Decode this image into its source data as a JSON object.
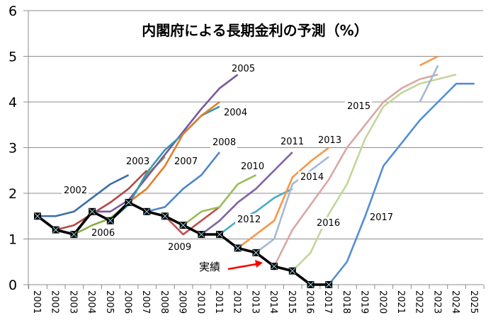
{
  "chart_data": {
    "type": "line",
    "title": "内閣府による長期金利の予測（%）",
    "xlabel": "",
    "ylabel": "",
    "ylim": [
      0,
      6
    ],
    "yticks": [
      "0",
      "1",
      "2",
      "3",
      "4",
      "5",
      "6"
    ],
    "grid": true,
    "legend": "none (series labeled inline)",
    "categories": [
      "2001",
      "2002",
      "2003",
      "2004",
      "2005",
      "2006",
      "2007",
      "2008",
      "2009",
      "2010",
      "2011",
      "2012",
      "2013",
      "2014",
      "2015",
      "2016",
      "2017",
      "2018",
      "2019",
      "2020",
      "2021",
      "2022",
      "2023",
      "2024",
      "2025"
    ],
    "actual": {
      "name": "実績",
      "color": "#000000",
      "points": [
        {
          "x": "2001",
          "y": 1.5
        },
        {
          "x": "2002",
          "y": 1.2
        },
        {
          "x": "2003",
          "y": 1.1
        },
        {
          "x": "2004",
          "y": 1.6
        },
        {
          "x": "2005",
          "y": 1.4
        },
        {
          "x": "2006",
          "y": 1.8
        },
        {
          "x": "2007",
          "y": 1.6
        },
        {
          "x": "2008",
          "y": 1.5
        },
        {
          "x": "2009",
          "y": 1.3
        },
        {
          "x": "2010",
          "y": 1.1
        },
        {
          "x": "2011",
          "y": 1.1
        },
        {
          "x": "2012",
          "y": 0.8
        },
        {
          "x": "2013",
          "y": 0.7
        },
        {
          "x": "2014",
          "y": 0.4
        },
        {
          "x": "2015",
          "y": 0.3
        },
        {
          "x": "2016",
          "y": 0.0
        },
        {
          "x": "2017",
          "y": 0.0
        }
      ]
    },
    "series": [
      {
        "name": "2002",
        "color": "#3C6EA5",
        "points": [
          {
            "x": "2001",
            "y": 1.5
          },
          {
            "x": "2002",
            "y": 1.5
          },
          {
            "x": "2003",
            "y": 1.6
          },
          {
            "x": "2004",
            "y": 1.9
          },
          {
            "x": "2005",
            "y": 2.2
          },
          {
            "x": "2006",
            "y": 2.4
          }
        ]
      },
      {
        "name": "2003",
        "color": "#B04A47",
        "points": [
          {
            "x": "2002",
            "y": 1.2
          },
          {
            "x": "2003",
            "y": 1.3
          },
          {
            "x": "2004",
            "y": 1.55
          },
          {
            "x": "2005",
            "y": 1.8
          },
          {
            "x": "2006",
            "y": 2.1
          },
          {
            "x": "2007",
            "y": 2.5
          }
        ]
      },
      {
        "name": "2006",
        "color": "#8EAA4A",
        "points": [
          {
            "x": "2003",
            "y": 1.1
          },
          {
            "x": "2004",
            "y": 1.3
          },
          {
            "x": "2005",
            "y": 1.45
          },
          {
            "x": "2006",
            "y": 1.8
          },
          {
            "x": "2007",
            "y": 2.4
          },
          {
            "x": "2008",
            "y": 2.8
          }
        ]
      },
      {
        "name": "2005",
        "color": "#7559A0",
        "points": [
          {
            "x": "2004",
            "y": 1.6
          },
          {
            "x": "2005",
            "y": 1.6
          },
          {
            "x": "2006",
            "y": 1.85
          },
          {
            "x": "2007",
            "y": 2.35
          },
          {
            "x": "2008",
            "y": 2.85
          },
          {
            "x": "2009",
            "y": 3.35
          },
          {
            "x": "2010",
            "y": 3.85
          },
          {
            "x": "2011",
            "y": 4.3
          },
          {
            "x": "2012",
            "y": 4.6
          }
        ]
      },
      {
        "name": "2004",
        "color": "#3A97AE",
        "points": [
          {
            "x": "2005",
            "y": 1.4
          },
          {
            "x": "2006",
            "y": 1.75
          },
          {
            "x": "2007",
            "y": 2.45
          },
          {
            "x": "2008",
            "y": 2.95
          },
          {
            "x": "2009",
            "y": 3.3
          },
          {
            "x": "2010",
            "y": 3.7
          },
          {
            "x": "2011",
            "y": 3.9
          }
        ]
      },
      {
        "name": "2007",
        "color": "#E07F2E",
        "points": [
          {
            "x": "2006",
            "y": 1.8
          },
          {
            "x": "2007",
            "y": 2.1
          },
          {
            "x": "2008",
            "y": 2.6
          },
          {
            "x": "2009",
            "y": 3.3
          },
          {
            "x": "2010",
            "y": 3.7
          },
          {
            "x": "2011",
            "y": 4.0
          }
        ]
      },
      {
        "name": "2008",
        "color": "#4F86C6",
        "points": [
          {
            "x": "2007",
            "y": 1.6
          },
          {
            "x": "2008",
            "y": 1.7
          },
          {
            "x": "2009",
            "y": 2.1
          },
          {
            "x": "2010",
            "y": 2.4
          },
          {
            "x": "2011",
            "y": 2.9
          }
        ]
      },
      {
        "name": "2009",
        "color": "#C0504D",
        "points": [
          {
            "x": "2008",
            "y": 1.5
          },
          {
            "x": "2009",
            "y": 1.1
          },
          {
            "x": "2010",
            "y": 1.4
          },
          {
            "x": "2011",
            "y": 1.7
          }
        ]
      },
      {
        "name": "2010",
        "color": "#9BBB59",
        "points": [
          {
            "x": "2009",
            "y": 1.3
          },
          {
            "x": "2010",
            "y": 1.6
          },
          {
            "x": "2011",
            "y": 1.7
          },
          {
            "x": "2012",
            "y": 2.2
          },
          {
            "x": "2013",
            "y": 2.4
          }
        ]
      },
      {
        "name": "2011",
        "color": "#8064A2",
        "points": [
          {
            "x": "2010",
            "y": 1.1
          },
          {
            "x": "2011",
            "y": 1.4
          },
          {
            "x": "2012",
            "y": 1.8
          },
          {
            "x": "2013",
            "y": 2.1
          },
          {
            "x": "2014",
            "y": 2.5
          },
          {
            "x": "2015",
            "y": 2.9
          }
        ]
      },
      {
        "name": "2012",
        "color": "#4BACC6",
        "points": [
          {
            "x": "2011",
            "y": 1.1
          },
          {
            "x": "2012",
            "y": 1.4
          },
          {
            "x": "2013",
            "y": 1.6
          },
          {
            "x": "2014",
            "y": 1.9
          },
          {
            "x": "2015",
            "y": 2.1
          }
        ]
      },
      {
        "name": "2013",
        "color": "#F79646",
        "points": [
          {
            "x": "2012",
            "y": 0.8
          },
          {
            "x": "2013",
            "y": 1.1
          },
          {
            "x": "2014",
            "y": 1.4
          },
          {
            "x": "2015",
            "y": 2.35
          },
          {
            "x": "2016",
            "y": 2.7
          },
          {
            "x": "2017",
            "y": 3.0
          }
        ]
      },
      {
        "name": "2014",
        "color": "#A5B8D8",
        "points": [
          {
            "x": "2013",
            "y": 0.7
          },
          {
            "x": "2014",
            "y": 1.0
          },
          {
            "x": "2015",
            "y": 2.2
          },
          {
            "x": "2016",
            "y": 2.5
          },
          {
            "x": "2017",
            "y": 2.8
          }
        ]
      },
      {
        "name": "2015",
        "color": "#D8A7A4",
        "points": [
          {
            "x": "2014",
            "y": 0.4
          },
          {
            "x": "2015",
            "y": 1.2
          },
          {
            "x": "2016",
            "y": 1.75
          },
          {
            "x": "2017",
            "y": 2.3
          },
          {
            "x": "2018",
            "y": 3.0
          },
          {
            "x": "2019",
            "y": 3.5
          },
          {
            "x": "2020",
            "y": 4.0
          },
          {
            "x": "2021",
            "y": 4.3
          },
          {
            "x": "2022",
            "y": 4.5
          },
          {
            "x": "2023",
            "y": 4.6
          }
        ]
      },
      {
        "name": "2016",
        "color": "#C3D69B",
        "points": [
          {
            "x": "2015",
            "y": 0.3
          },
          {
            "x": "2016",
            "y": 0.7
          },
          {
            "x": "2017",
            "y": 1.55
          },
          {
            "x": "2018",
            "y": 2.2
          },
          {
            "x": "2019",
            "y": 3.2
          },
          {
            "x": "2020",
            "y": 3.9
          },
          {
            "x": "2021",
            "y": 4.2
          },
          {
            "x": "2022",
            "y": 4.4
          },
          {
            "x": "2023",
            "y": 4.5
          },
          {
            "x": "2024",
            "y": 4.6
          }
        ]
      },
      {
        "name": "2017",
        "color": "#558ED5",
        "points": [
          {
            "x": "2017",
            "y": 0.0
          },
          {
            "x": "2018",
            "y": 0.5
          },
          {
            "x": "2019",
            "y": 1.5
          },
          {
            "x": "2020",
            "y": 2.6
          },
          {
            "x": "2021",
            "y": 3.1
          },
          {
            "x": "2022",
            "y": 3.6
          },
          {
            "x": "2023",
            "y": 4.0
          },
          {
            "x": "2024",
            "y": 4.4
          },
          {
            "x": "2025",
            "y": 4.4
          }
        ]
      },
      {
        "name": "",
        "color": "#F79646",
        "points": [
          {
            "x": "2022",
            "y": 4.8
          },
          {
            "x": "2023",
            "y": 5.0
          }
        ]
      },
      {
        "name": "",
        "color": "#A5B8D8",
        "points": [
          {
            "x": "2022",
            "y": 4.0
          },
          {
            "x": "2023",
            "y": 4.8
          }
        ]
      }
    ],
    "annotations": [
      {
        "text": "2002",
        "series": "2002"
      },
      {
        "text": "2003",
        "series": "2003"
      },
      {
        "text": "2004",
        "series": "2004"
      },
      {
        "text": "2005",
        "series": "2005"
      },
      {
        "text": "2006",
        "series": "2006"
      },
      {
        "text": "2007",
        "series": "2007"
      },
      {
        "text": "2008",
        "series": "2008"
      },
      {
        "text": "2009",
        "series": "2009"
      },
      {
        "text": "2010",
        "series": "2010"
      },
      {
        "text": "2011",
        "series": "2011"
      },
      {
        "text": "2012",
        "series": "2012"
      },
      {
        "text": "2013",
        "series": "2013"
      },
      {
        "text": "2014",
        "series": "2014"
      },
      {
        "text": "2015",
        "series": "2015"
      },
      {
        "text": "2016",
        "series": "2016"
      },
      {
        "text": "2017",
        "series": "2017"
      },
      {
        "text": "実績",
        "series": "actual",
        "arrow_color": "#FF0000"
      }
    ]
  }
}
